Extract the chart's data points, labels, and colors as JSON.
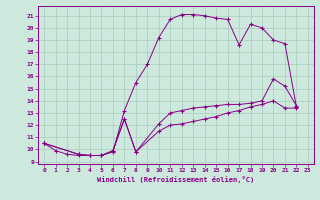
{
  "title": "",
  "xlabel": "Windchill (Refroidissement éolien,°C)",
  "bg_color": "#cde8dc",
  "line_color": "#880088",
  "grid_color": "#aaccbb",
  "xlim": [
    -0.5,
    23.5
  ],
  "ylim": [
    8.8,
    21.8
  ],
  "xticks": [
    0,
    1,
    2,
    3,
    4,
    5,
    6,
    7,
    8,
    9,
    10,
    11,
    12,
    13,
    14,
    15,
    16,
    17,
    18,
    19,
    20,
    21,
    22,
    23
  ],
  "yticks": [
    9,
    10,
    11,
    12,
    13,
    14,
    15,
    16,
    17,
    18,
    19,
    20,
    21
  ],
  "curve1_x": [
    0,
    1,
    2,
    3,
    4,
    5,
    6,
    7,
    8,
    9,
    10,
    11,
    12,
    13,
    14,
    15,
    16,
    17,
    18,
    19,
    20,
    21,
    22
  ],
  "curve1_y": [
    10.5,
    9.9,
    9.6,
    9.5,
    9.5,
    9.5,
    9.8,
    13.2,
    15.5,
    17.0,
    19.2,
    20.7,
    21.1,
    21.1,
    21.0,
    20.8,
    20.7,
    18.6,
    20.3,
    20.0,
    19.0,
    18.7,
    13.5
  ],
  "curve2_x": [
    0,
    3,
    4,
    5,
    6,
    7,
    8,
    10,
    11,
    12,
    13,
    14,
    15,
    16,
    17,
    18,
    19,
    20,
    21,
    22
  ],
  "curve2_y": [
    10.5,
    9.6,
    9.5,
    9.5,
    9.9,
    12.5,
    9.8,
    12.1,
    13.0,
    13.2,
    13.4,
    13.5,
    13.6,
    13.7,
    13.7,
    13.8,
    14.0,
    15.8,
    15.2,
    13.6
  ],
  "curve3_x": [
    0,
    3,
    4,
    5,
    6,
    7,
    8,
    10,
    11,
    12,
    13,
    14,
    15,
    16,
    17,
    18,
    19,
    20,
    21,
    22
  ],
  "curve3_y": [
    10.5,
    9.6,
    9.5,
    9.5,
    9.9,
    12.5,
    9.8,
    11.5,
    12.0,
    12.1,
    12.3,
    12.5,
    12.7,
    13.0,
    13.2,
    13.5,
    13.7,
    14.0,
    13.4,
    13.4
  ]
}
